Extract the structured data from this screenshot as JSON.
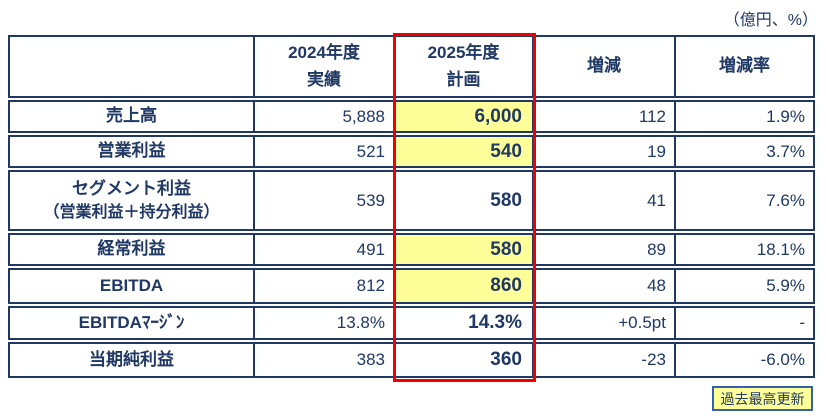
{
  "unit_label": "（億円、%）",
  "badge_label": "過去最高更新",
  "columns": {
    "actual_line1": "2024年度",
    "actual_line2": "実績",
    "plan_line1": "2025年度",
    "plan_line2": "計画",
    "change": "増減",
    "rate": "増減率"
  },
  "rows": [
    {
      "label": "売上高",
      "actual": "5,888",
      "plan": "6,000",
      "change": "112",
      "rate": "1.9%"
    },
    {
      "label": "営業利益",
      "actual": "521",
      "plan": "540",
      "change": "19",
      "rate": "3.7%"
    },
    {
      "label": "セグメント利益",
      "label2": "（営業利益＋持分利益）",
      "actual": "539",
      "plan": "580",
      "change": "41",
      "rate": "7.6%"
    },
    {
      "label": "経常利益",
      "actual": "491",
      "plan": "580",
      "change": "89",
      "rate": "18.1%"
    },
    {
      "label": "EBITDA",
      "actual": "812",
      "plan": "860",
      "change": "48",
      "rate": "5.9%"
    },
    {
      "label": "EBITDAﾏｰｼﾞﾝ",
      "actual": "13.8%",
      "plan": "14.3%",
      "change": "+0.5pt",
      "rate": "-"
    },
    {
      "label": "当期純利益",
      "actual": "383",
      "plan": "360",
      "change": "-23",
      "rate": "-6.0%"
    }
  ],
  "colors": {
    "navy": "#1F3864",
    "red_outline": "#F20000",
    "highlight_yellow": "#FFFF99",
    "badge_border": "#3560AD"
  }
}
